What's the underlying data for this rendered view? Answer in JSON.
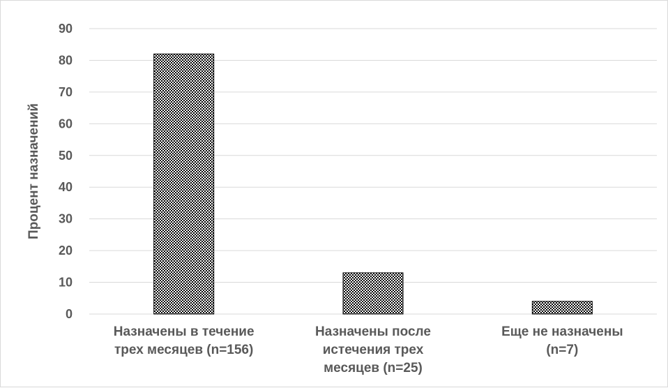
{
  "chart_data": {
    "type": "bar",
    "title": "",
    "xlabel": "",
    "ylabel": "Процент назначений",
    "categories": [
      [
        "Назначены в течение",
        "трех месяцев (n=156)"
      ],
      [
        "Назначены после",
        "истечения трех",
        "месяцев (n=25)"
      ],
      [
        "Еще не назначены",
        "(n=7)"
      ]
    ],
    "values": [
      82,
      13,
      4
    ],
    "ylim": [
      0,
      90
    ],
    "yticks": [
      0,
      10,
      20,
      30,
      40,
      50,
      60,
      70,
      80,
      90
    ],
    "grid": true,
    "legend": "none",
    "colors": {
      "bar_pattern_fg": "#000000",
      "bar_pattern_bg": "#ffffff",
      "bar_border": "#000000",
      "gridline": "#d9d9d9",
      "text": "#595959"
    }
  }
}
